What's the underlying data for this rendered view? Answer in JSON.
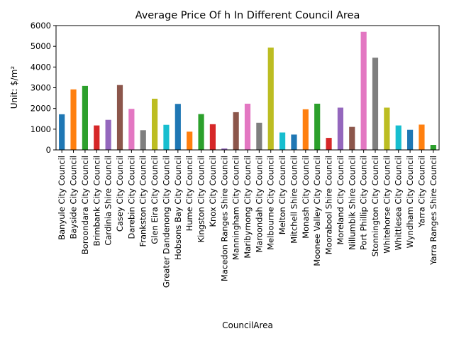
{
  "chart_data": {
    "type": "bar",
    "title": "Average Price Of h In Different Council Area",
    "xlabel": "CouncilArea",
    "ylabel": "Unit: $/m²",
    "ylim": [
      0,
      6000
    ],
    "yticks": [
      0,
      1000,
      2000,
      3000,
      4000,
      5000,
      6000
    ],
    "categories": [
      "Banyule City Council",
      "Bayside City Council",
      "Boroondara City Council",
      "Brimbank City Council",
      "Cardinia Shire Council",
      "Casey City Council",
      "Darebin City Council",
      "Frankston City Council",
      "Glen Eira City Council",
      "Greater Dandenong City Council",
      "Hobsons Bay City Council",
      "Hume City Council",
      "Kingston City Council",
      "Knox City Council",
      "Macedon Ranges Shire Council",
      "Manningham City Council",
      "Maribyrnong City Council",
      "Maroondah City Council",
      "Melbourne City Council",
      "Melton City Council",
      "Mitchell Shire Council",
      "Monash City Council",
      "Moonee Valley City Council",
      "Moorabool Shire Council",
      "Moreland City Council",
      "Nillumbik Shire Council",
      "Port Phillip City Council",
      "Stonnington City Council",
      "Whitehorse City Council",
      "Whittlesea City Council",
      "Wyndham City Council",
      "Yarra City Council",
      "Yarra Ranges Shire Council"
    ],
    "values": [
      1720,
      2920,
      3090,
      1180,
      1450,
      3130,
      1980,
      950,
      2470,
      1210,
      2220,
      880,
      1730,
      1240,
      70,
      1820,
      2230,
      1310,
      4940,
      840,
      740,
      1960,
      2230,
      580,
      2040,
      1110,
      5700,
      4450,
      2040,
      1180,
      970,
      1220,
      240
    ],
    "colors": [
      "#1f77b4",
      "#ff7f0e",
      "#2ca02c",
      "#d62728",
      "#9467bd",
      "#8c564b",
      "#e377c2",
      "#7f7f7f",
      "#bcbd22",
      "#17becf"
    ],
    "grid": false,
    "legend": "none"
  }
}
